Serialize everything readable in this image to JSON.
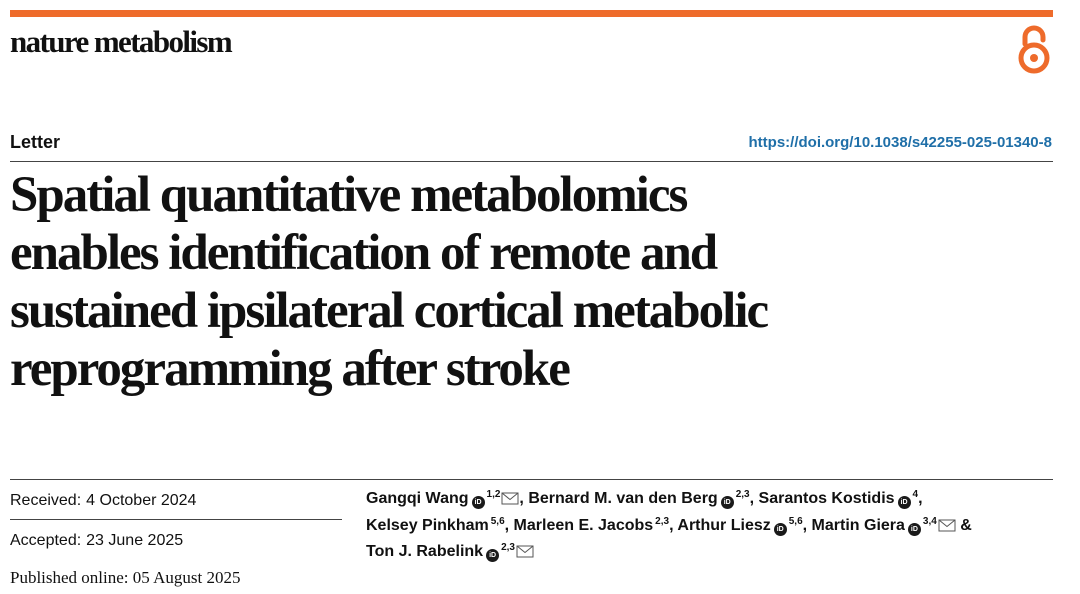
{
  "journal": {
    "name": "nature metabolism",
    "accent_color": "#ee6b2b",
    "open_access_icon": "open-access-icon"
  },
  "article": {
    "type": "Letter",
    "doi": "https://doi.org/10.1038/s42255-025-01340-8",
    "title_lines": [
      "Spatial quantitative metabolomics",
      "enables identification of remote and",
      "sustained ipsilateral cortical metabolic",
      "reprogramming after stroke"
    ]
  },
  "dates": {
    "received_label": "Received:",
    "received": "4 October 2024",
    "accepted_label": "Accepted:",
    "accepted": "23 June 2025",
    "published_label": "Published online:",
    "published": "05 August 2025"
  },
  "authors": [
    {
      "name": "Gangqi Wang",
      "affiliations": "1,2",
      "orcid": true,
      "corresponding": true,
      "separator": ","
    },
    {
      "name": "Bernard M. van den Berg",
      "affiliations": "2,3",
      "orcid": true,
      "corresponding": false,
      "separator": ","
    },
    {
      "name": "Sarantos Kostidis",
      "affiliations": "4",
      "orcid": true,
      "corresponding": false,
      "separator": ","
    },
    {
      "name": "Kelsey Pinkham",
      "affiliations": "5,6",
      "orcid": false,
      "corresponding": false,
      "separator": ","
    },
    {
      "name": "Marleen E. Jacobs",
      "affiliations": "2,3",
      "orcid": false,
      "corresponding": false,
      "separator": ","
    },
    {
      "name": "Arthur Liesz",
      "affiliations": "5,6",
      "orcid": true,
      "corresponding": false,
      "separator": ","
    },
    {
      "name": "Martin Giera",
      "affiliations": "3,4",
      "orcid": true,
      "corresponding": true,
      "separator": " &"
    },
    {
      "name": "Ton J. Rabelink",
      "affiliations": "2,3",
      "orcid": true,
      "corresponding": true,
      "separator": ""
    }
  ],
  "icons": {
    "orcid": "orcid-icon",
    "corresponding": "envelope-icon"
  }
}
